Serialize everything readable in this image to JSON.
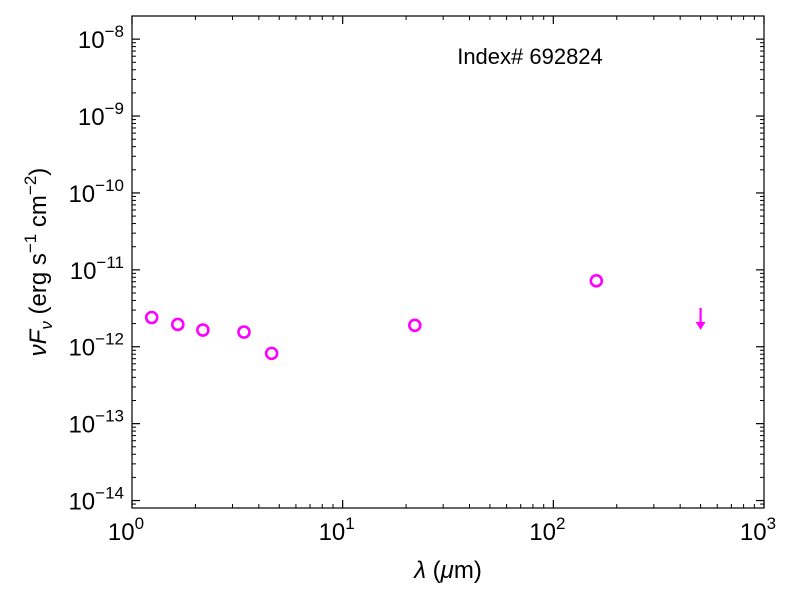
{
  "chart_data": {
    "type": "scatter",
    "title": "",
    "annotation": "Index# 692824",
    "xlabel": "λ (μm)",
    "ylabel": "νFν (erg s⁻¹ cm⁻²)",
    "xscale": "log",
    "yscale": "log",
    "xlim": [
      1,
      1000
    ],
    "ylim": [
      8e-15,
      2e-08
    ],
    "grid": false,
    "x_ticks": [
      {
        "value": 1,
        "base": "10",
        "exp": "0"
      },
      {
        "value": 10,
        "base": "10",
        "exp": "1"
      },
      {
        "value": 100,
        "base": "10",
        "exp": "2"
      },
      {
        "value": 1000,
        "base": "10",
        "exp": "3"
      }
    ],
    "y_ticks": [
      {
        "value": 1e-14,
        "base": "10",
        "exp": "−14"
      },
      {
        "value": 1e-13,
        "base": "10",
        "exp": "−13"
      },
      {
        "value": 1e-12,
        "base": "10",
        "exp": "−12"
      },
      {
        "value": 1e-11,
        "base": "10",
        "exp": "−11"
      },
      {
        "value": 1e-10,
        "base": "10",
        "exp": "−10"
      },
      {
        "value": 1e-09,
        "base": "10",
        "exp": "−9"
      },
      {
        "value": 1e-08,
        "base": "10",
        "exp": "−8"
      }
    ],
    "series": [
      {
        "marker": "open-circle",
        "color": "#ff00ff",
        "points": [
          {
            "x": 1.24,
            "y": 2.4e-12
          },
          {
            "x": 1.65,
            "y": 1.95e-12
          },
          {
            "x": 2.17,
            "y": 1.65e-12
          },
          {
            "x": 3.4,
            "y": 1.55e-12
          },
          {
            "x": 4.6,
            "y": 8.2e-13
          },
          {
            "x": 22,
            "y": 1.9e-12
          },
          {
            "x": 160,
            "y": 7.2e-12
          }
        ]
      },
      {
        "marker": "upper-limit-arrow",
        "color": "#ff00ff",
        "points": [
          {
            "x": 500,
            "y": 2.3e-12
          }
        ]
      }
    ]
  }
}
